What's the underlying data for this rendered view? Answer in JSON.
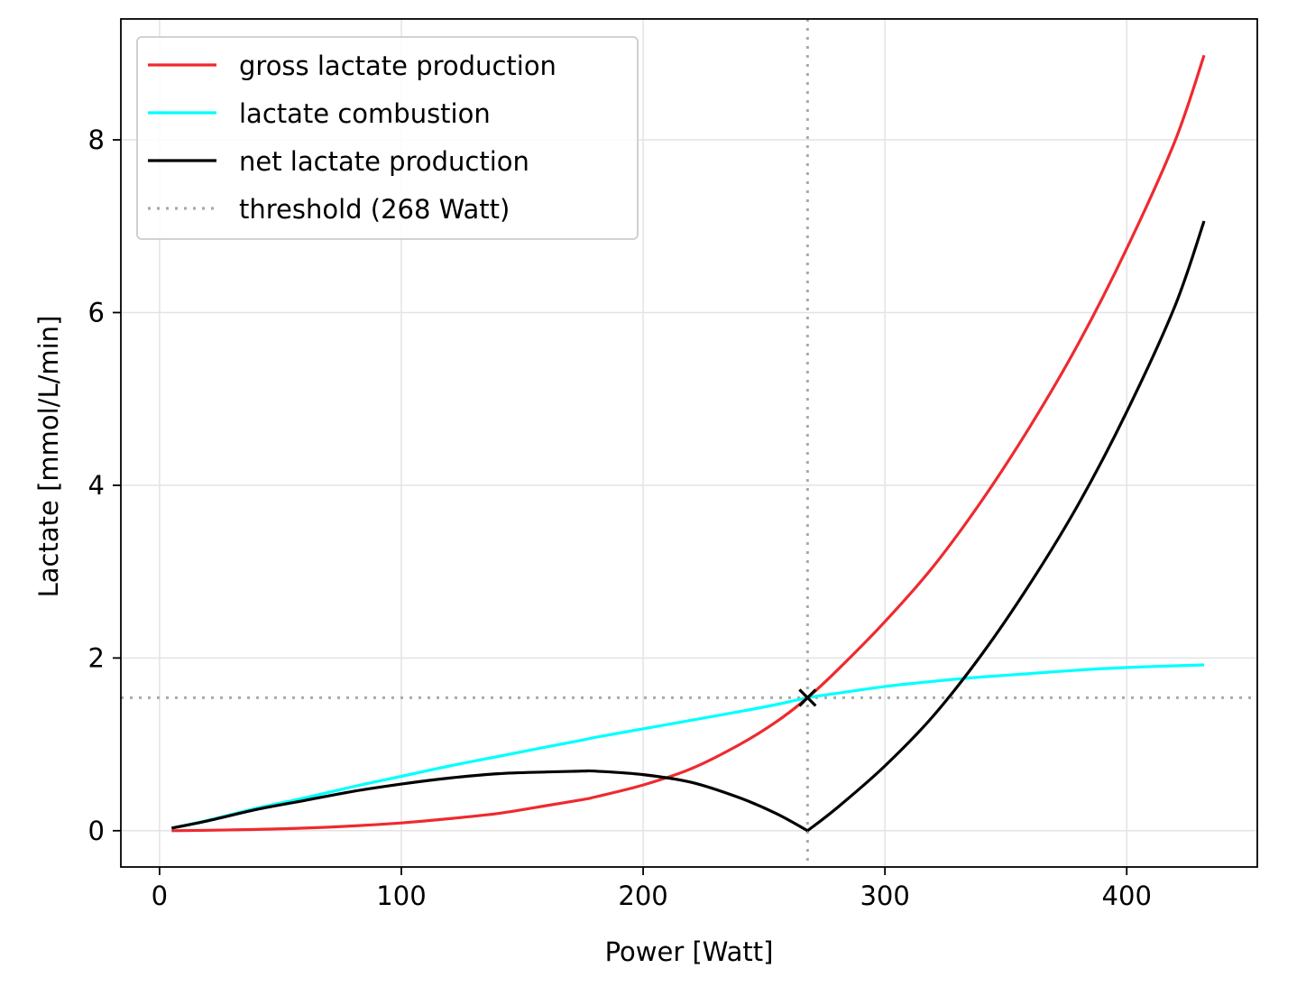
{
  "chart_data": {
    "type": "line",
    "title": "",
    "xlabel": "Power [Watt]",
    "ylabel": "Lactate [mmol/L/min]",
    "xlim": [
      -16,
      454
    ],
    "ylim": [
      -0.42,
      9.4
    ],
    "xticks": [
      0,
      100,
      200,
      300,
      400
    ],
    "xtick_labels": [
      "0",
      "100",
      "200",
      "300",
      "400"
    ],
    "yticks": [
      0,
      2,
      4,
      6,
      8
    ],
    "ytick_labels": [
      "0",
      "2",
      "4",
      "6",
      "8"
    ],
    "grid": true,
    "legend_position": "upper-left",
    "x": [
      5,
      20,
      40,
      60,
      80,
      100,
      120,
      140,
      160,
      175,
      180,
      200,
      220,
      240,
      255,
      268,
      280,
      300,
      320,
      340,
      360,
      380,
      400,
      420,
      432
    ],
    "series": [
      {
        "name": "gross lactate production",
        "color": "#ee2a2f",
        "style": "solid",
        "values": [
          0.0,
          0.005,
          0.015,
          0.03,
          0.055,
          0.09,
          0.14,
          0.2,
          0.29,
          0.36,
          0.39,
          0.53,
          0.72,
          1.0,
          1.26,
          1.54,
          1.85,
          2.42,
          3.06,
          3.82,
          4.68,
          5.64,
          6.74,
          7.99,
          8.98
        ]
      },
      {
        "name": "lactate combustion",
        "color": "#00ffff",
        "style": "solid",
        "values": [
          0.03,
          0.12,
          0.26,
          0.38,
          0.51,
          0.63,
          0.75,
          0.86,
          0.97,
          1.05,
          1.08,
          1.18,
          1.28,
          1.38,
          1.46,
          1.54,
          1.59,
          1.67,
          1.73,
          1.78,
          1.82,
          1.86,
          1.89,
          1.91,
          1.92
        ]
      },
      {
        "name": "net lactate production",
        "color": "#000000",
        "style": "solid",
        "values": [
          0.03,
          0.115,
          0.245,
          0.35,
          0.455,
          0.54,
          0.61,
          0.66,
          0.68,
          0.69,
          0.69,
          0.65,
          0.56,
          0.38,
          0.2,
          0.0,
          0.26,
          0.75,
          1.33,
          2.04,
          2.86,
          3.78,
          4.85,
          6.08,
          7.06
        ]
      }
    ],
    "threshold": {
      "name": "threshold (268 Watt)",
      "color": "#aaaaaa",
      "style": "dotted",
      "x": 268,
      "y": 1.54
    },
    "marker": {
      "x": 268,
      "y": 1.54,
      "symbol": "x",
      "color": "#000000"
    }
  }
}
